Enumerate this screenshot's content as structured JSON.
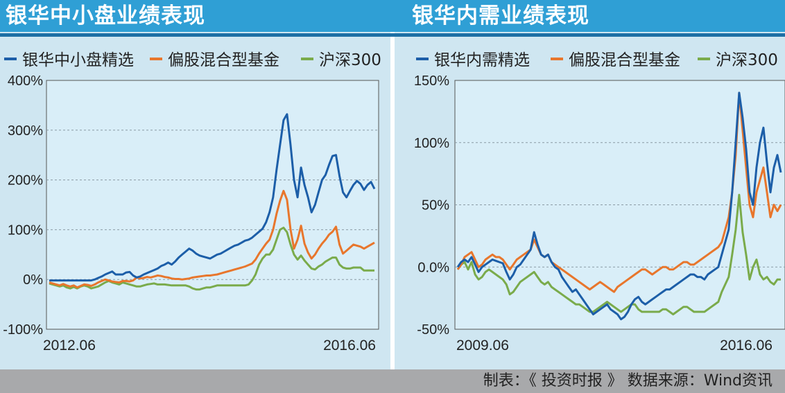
{
  "footer": {
    "text": "制表：《 投资时报 》 数据来源：Wind资讯"
  },
  "colors": {
    "blue": "#1c5ea8",
    "orange": "#e8762c",
    "green": "#7aab4b",
    "title_bg": "#2f9fd5",
    "plot_bg": "#d9eef8"
  },
  "chart_data": [
    {
      "type": "line",
      "title": "银华中小盘业绩表现",
      "xlabel": "",
      "ylabel": "",
      "x_ticks": [
        "2012.06",
        "2016.06"
      ],
      "y_ticks": [
        "400%",
        "300%",
        "200%",
        "100%",
        "0%",
        "-100%"
      ],
      "ylim": [
        -100,
        400
      ],
      "grid": "horizontal-dashed",
      "legend_position": "top",
      "series": [
        {
          "name": "银华中小盘精选",
          "color": "#1c5ea8",
          "values": [
            -2,
            -2,
            -2,
            -2,
            -2,
            -2,
            -2,
            -2,
            -2,
            -2,
            -2,
            -2,
            -2,
            0,
            3,
            6,
            10,
            13,
            16,
            10,
            10,
            10,
            14,
            15,
            8,
            4,
            6,
            10,
            13,
            16,
            19,
            22,
            27,
            30,
            34,
            30,
            36,
            44,
            50,
            56,
            62,
            58,
            52,
            48,
            46,
            44,
            42,
            46,
            50,
            52,
            56,
            60,
            64,
            68,
            70,
            74,
            78,
            80,
            84,
            90,
            96,
            102,
            115,
            135,
            165,
            220,
            270,
            320,
            332,
            270,
            200,
            165,
            225,
            190,
            165,
            135,
            150,
            175,
            200,
            210,
            230,
            248,
            250,
            208,
            175,
            165,
            178,
            190,
            198,
            192,
            180,
            190,
            196,
            182
          ]
        },
        {
          "name": "偏股混合型基金",
          "color": "#e8762c",
          "values": [
            -6,
            -8,
            -10,
            -12,
            -9,
            -12,
            -14,
            -12,
            -16,
            -13,
            -10,
            -11,
            -13,
            -10,
            -6,
            -3,
            0,
            -2,
            -4,
            -5,
            -6,
            -3,
            -3,
            -4,
            -2,
            4,
            2,
            3,
            5,
            4,
            6,
            8,
            7,
            5,
            4,
            2,
            1,
            1,
            0,
            1,
            2,
            4,
            5,
            6,
            7,
            8,
            8,
            9,
            10,
            12,
            14,
            16,
            18,
            20,
            22,
            24,
            26,
            29,
            32,
            40,
            52,
            62,
            72,
            80,
            100,
            132,
            158,
            178,
            160,
            100,
            62,
            80,
            108,
            72,
            54,
            42,
            50,
            62,
            72,
            80,
            90,
            96,
            106,
            70,
            52,
            58,
            64,
            70,
            68,
            66,
            62,
            66,
            70,
            74
          ]
        },
        {
          "name": "沪深300",
          "color": "#7aab4b",
          "values": [
            -8,
            -10,
            -12,
            -14,
            -12,
            -16,
            -18,
            -15,
            -18,
            -14,
            -12,
            -14,
            -18,
            -16,
            -14,
            -10,
            -6,
            -3,
            -6,
            -8,
            -10,
            -6,
            -8,
            -10,
            -12,
            -14,
            -14,
            -12,
            -10,
            -9,
            -8,
            -10,
            -10,
            -10,
            -11,
            -12,
            -12,
            -12,
            -12,
            -12,
            -14,
            -18,
            -20,
            -20,
            -18,
            -16,
            -16,
            -14,
            -12,
            -12,
            -12,
            -12,
            -12,
            -12,
            -12,
            -12,
            -12,
            -10,
            -2,
            10,
            30,
            42,
            50,
            50,
            60,
            80,
            100,
            104,
            95,
            70,
            50,
            40,
            48,
            38,
            30,
            22,
            20,
            26,
            30,
            36,
            40,
            44,
            44,
            30,
            24,
            22,
            22,
            24,
            24,
            24,
            18,
            18,
            18,
            18
          ]
        }
      ]
    },
    {
      "type": "line",
      "title": "银华内需业绩表现",
      "xlabel": "",
      "ylabel": "",
      "x_ticks": [
        "2009.06",
        "2016.06"
      ],
      "y_ticks": [
        "150%",
        "100%",
        "50%",
        "0.0%",
        "-50%"
      ],
      "ylim": [
        -50,
        150
      ],
      "grid": "horizontal-dashed",
      "legend_position": "top",
      "series": [
        {
          "name": "银华内需精选",
          "color": "#1c5ea8",
          "values": [
            0,
            4,
            6,
            4,
            8,
            2,
            -4,
            0,
            2,
            4,
            6,
            5,
            4,
            3,
            -4,
            -10,
            -6,
            0,
            2,
            6,
            10,
            14,
            28,
            18,
            10,
            8,
            10,
            4,
            0,
            -2,
            -8,
            -12,
            -16,
            -20,
            -18,
            -22,
            -26,
            -30,
            -34,
            -38,
            -36,
            -34,
            -32,
            -30,
            -34,
            -36,
            -38,
            -42,
            -40,
            -36,
            -30,
            -26,
            -24,
            -28,
            -30,
            -28,
            -26,
            -24,
            -22,
            -20,
            -18,
            -18,
            -16,
            -14,
            -12,
            -10,
            -8,
            -6,
            -6,
            -8,
            -8,
            -10,
            -6,
            -4,
            -2,
            0,
            10,
            20,
            30,
            60,
            100,
            140,
            120,
            95,
            60,
            50,
            80,
            100,
            112,
            84,
            60,
            80,
            90,
            76
          ]
        },
        {
          "name": "偏股混合型基金",
          "color": "#e8762c",
          "values": [
            -2,
            2,
            8,
            10,
            12,
            6,
            0,
            2,
            6,
            8,
            10,
            8,
            8,
            6,
            2,
            -2,
            2,
            6,
            8,
            10,
            12,
            14,
            22,
            16,
            10,
            8,
            10,
            4,
            2,
            0,
            -2,
            -4,
            -6,
            -8,
            -10,
            -12,
            -14,
            -16,
            -18,
            -16,
            -14,
            -12,
            -14,
            -16,
            -18,
            -20,
            -16,
            -14,
            -12,
            -10,
            -8,
            -6,
            -4,
            -2,
            -2,
            -4,
            -6,
            -4,
            -2,
            0,
            0,
            -2,
            -2,
            0,
            2,
            4,
            4,
            2,
            2,
            4,
            6,
            8,
            10,
            12,
            14,
            16,
            20,
            30,
            40,
            60,
            90,
            140,
            110,
            80,
            50,
            40,
            60,
            70,
            80,
            60,
            40,
            50,
            45,
            50
          ]
        },
        {
          "name": "沪深300",
          "color": "#7aab4b",
          "values": [
            -2,
            2,
            4,
            -2,
            4,
            -6,
            -10,
            -8,
            -4,
            -2,
            -4,
            -6,
            -8,
            -10,
            -14,
            -22,
            -20,
            -16,
            -12,
            -10,
            -8,
            -6,
            -4,
            -8,
            -12,
            -14,
            -12,
            -16,
            -18,
            -20,
            -22,
            -24,
            -26,
            -28,
            -30,
            -30,
            -32,
            -34,
            -36,
            -36,
            -34,
            -32,
            -30,
            -28,
            -30,
            -32,
            -34,
            -36,
            -34,
            -32,
            -30,
            -30,
            -34,
            -36,
            -36,
            -36,
            -36,
            -36,
            -36,
            -34,
            -34,
            -36,
            -38,
            -36,
            -34,
            -32,
            -32,
            -34,
            -36,
            -36,
            -36,
            -36,
            -34,
            -32,
            -30,
            -28,
            -20,
            -14,
            -8,
            10,
            30,
            58,
            28,
            10,
            -10,
            0,
            6,
            -6,
            -10,
            -8,
            -12,
            -14,
            -10,
            -10
          ]
        }
      ]
    }
  ]
}
